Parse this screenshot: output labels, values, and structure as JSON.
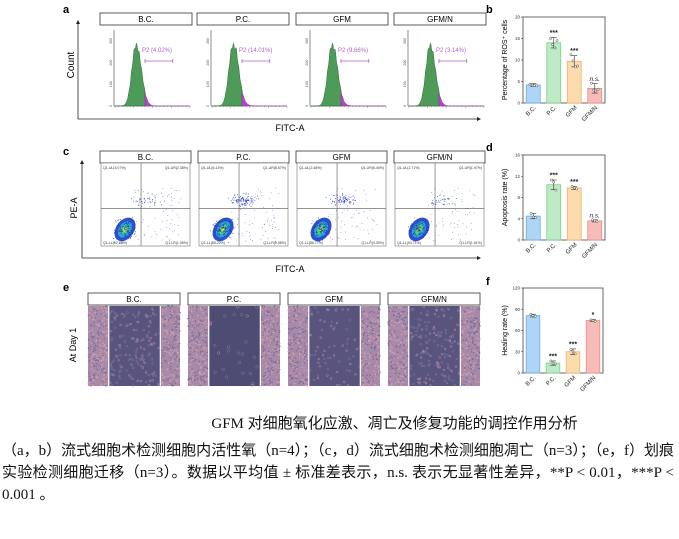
{
  "groups": [
    "B.C.",
    "P.C.",
    "GFM",
    "GFM/N"
  ],
  "colors": {
    "bar_fill": [
      "#aed5f6",
      "#bfeac6",
      "#fcdcae",
      "#f7bcb8"
    ],
    "bar_edge": [
      "#6aaee8",
      "#78cf8a",
      "#f0b366",
      "#ea8a84"
    ],
    "histogram_fill": "#4e9a58",
    "gate_tail": "#b540cc",
    "gate_label": "#b55fc6"
  },
  "panel_a": {
    "letter": "a",
    "ylabel": "Count",
    "xlabel": "FITC-A",
    "yticks": [
      "0",
      "100",
      "200",
      "300"
    ],
    "gates": [
      "P2 (4.02%)",
      "P2 (14.01%)",
      "P2 (9.66%)",
      "P2 (3.14%)"
    ],
    "gate_percent": [
      4.02,
      14.01,
      9.66,
      3.14
    ]
  },
  "panel_c": {
    "letter": "c",
    "ylabel": "PE-A",
    "xlabel": "FITC-A",
    "quadrants": [
      {
        "ul": "Q1-UL(3.07%)",
        "ur": "Q1-UR(2.38%)",
        "ll": "Q1-LL(92.88%)",
        "lr": "Q1-LR(1.05%)"
      },
      {
        "ul": "Q1-UL(6.13%)",
        "ur": "Q1-UR(8.67%)",
        "ll": "Q1-LL(85.22%)",
        "lr": "Q1-LR(5.98%)"
      },
      {
        "ul": "Q1-UL(2.48%)",
        "ur": "Q1-UR(6.44%)",
        "ll": "Q1-LL(86.77%)",
        "lr": "Q1-LR(4.30%)"
      },
      {
        "ul": "Q1-UL(2.71%)",
        "ur": "Q1-UR(1.97%)",
        "ll": "Q1-LL(93.71%)",
        "lr": "Q1-LR(1.61%)"
      }
    ]
  },
  "panel_e": {
    "letter": "e",
    "ylabel": "At Day 1"
  },
  "chart_data": [
    {
      "panel": "b",
      "type": "bar",
      "categories": [
        "B.C.",
        "P.C.",
        "GFM",
        "GFM/N"
      ],
      "values": [
        4.2,
        14.0,
        9.7,
        3.4
      ],
      "errors": [
        0.3,
        1.2,
        1.3,
        1.1
      ],
      "points": [
        [
          4.4,
          4.2,
          4.1,
          4.0
        ],
        [
          15.0,
          13.6,
          12.8,
          14.5
        ],
        [
          11.2,
          9.8,
          8.4,
          8.6
        ],
        [
          4.6,
          3.0,
          2.8,
          3.2
        ]
      ],
      "significance": [
        "",
        "***",
        "***",
        "n.s."
      ],
      "ylabel": "Percentage of ROS⁺ cells",
      "ylim": [
        0,
        20
      ],
      "yticks": [
        0,
        5,
        10,
        15,
        20
      ]
    },
    {
      "panel": "d",
      "type": "bar",
      "categories": [
        "B.C.",
        "P.C.",
        "GFM",
        "GFM/N"
      ],
      "values": [
        4.5,
        10.4,
        9.8,
        3.6
      ],
      "errors": [
        0.5,
        0.9,
        0.3,
        0.2
      ],
      "points": [
        [
          5.0,
          4.3,
          4.2
        ],
        [
          11.3,
          10.9,
          9.4
        ],
        [
          10.1,
          9.8,
          9.6
        ],
        [
          3.8,
          3.6,
          3.5
        ]
      ],
      "significance": [
        "",
        "***",
        "***",
        "n.s."
      ],
      "ylabel": "Apoptosis rate (%)",
      "ylim": [
        0,
        16
      ],
      "yticks": [
        0,
        4,
        8,
        12,
        16
      ]
    },
    {
      "panel": "f",
      "type": "bar",
      "categories": [
        "B.C.",
        "P.C.",
        "GFM",
        "GFM/N"
      ],
      "values": [
        81,
        14,
        30,
        74
      ],
      "errors": [
        2,
        3,
        4,
        1.5
      ],
      "points": [
        [
          83,
          81,
          80
        ],
        [
          17,
          14,
          13
        ],
        [
          33,
          31,
          27
        ],
        [
          75,
          74,
          73
        ]
      ],
      "significance": [
        "",
        "***",
        "***",
        "*"
      ],
      "ylabel": "Healing rate (%)",
      "ylim": [
        0,
        120
      ],
      "yticks": [
        0,
        30,
        60,
        90,
        120
      ]
    }
  ],
  "caption": {
    "title": "GFM 对细胞氧化应激、凋亡及修复功能的调控作用分析",
    "body": "（a，b）流式细胞术检测细胞内活性氧（n=4）；（c，d）流式细胞术检测细胞凋亡（n=3）；（e，f）划痕实验检测细胞迁移（n=3）。数据以平均值 ± 标准差表示，n.s. 表示无显著性差异，**P < 0.01，***P < 0.001 。"
  }
}
